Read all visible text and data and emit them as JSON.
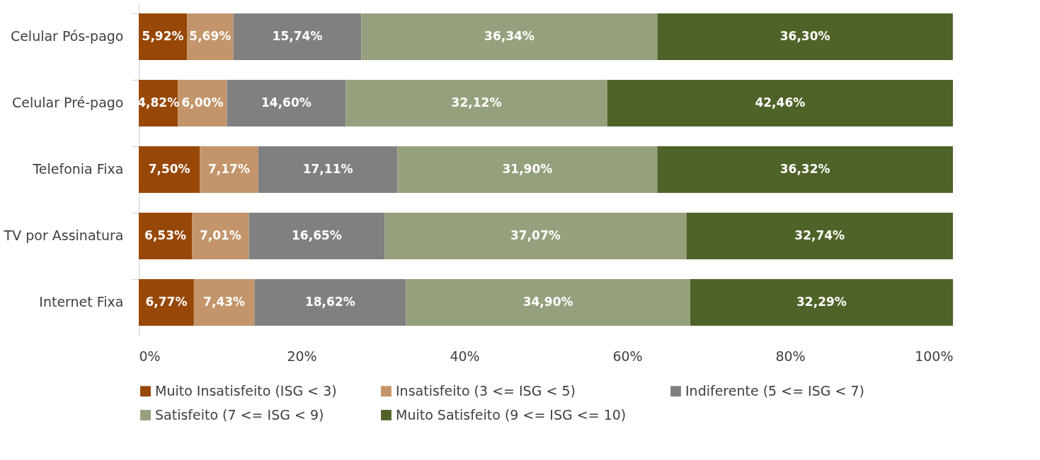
{
  "chart_data": {
    "type": "bar",
    "orientation": "horizontal",
    "stacked": true,
    "categories": [
      "Celular Pós-pago",
      "Celular Pré-pago",
      "Telefonia Fixa",
      "TV por Assinatura",
      "Internet Fixa"
    ],
    "series": [
      {
        "name": "Muito Insatisfeito (ISG < 3)",
        "color": "#974706",
        "values": [
          5.92,
          4.82,
          7.5,
          6.53,
          6.77
        ],
        "value_labels": [
          "5,92%",
          "4,82%",
          "7,50%",
          "6,53%",
          "6,77%"
        ]
      },
      {
        "name": "Insatisfeito (3 <= ISG < 5)",
        "color": "#c4956a",
        "values": [
          5.69,
          6.0,
          7.17,
          7.01,
          7.43
        ],
        "value_labels": [
          "5,69%",
          "6,00%",
          "7,17%",
          "7,01%",
          "7,43%"
        ]
      },
      {
        "name": "Indiferente (5 <= ISG < 7)",
        "color": "#808080",
        "values": [
          15.74,
          14.6,
          17.11,
          16.65,
          18.62
        ],
        "value_labels": [
          "15,74%",
          "14,60%",
          "17,11%",
          "16,65%",
          "18,62%"
        ]
      },
      {
        "name": "Satisfeito (7 <= ISG < 9)",
        "color": "#95a17d",
        "values": [
          36.34,
          32.12,
          31.9,
          37.07,
          34.9
        ],
        "value_labels": [
          "36,34%",
          "32,12%",
          "31,90%",
          "37,07%",
          "34,90%"
        ]
      },
      {
        "name": "Muito Satisfeito (9 <= ISG <= 10)",
        "color": "#4f6228",
        "values": [
          36.3,
          42.46,
          36.32,
          32.74,
          32.29
        ],
        "value_labels": [
          "36,30%",
          "42,46%",
          "36,32%",
          "32,74%",
          "32,29%"
        ]
      }
    ],
    "xlim": [
      0,
      100
    ],
    "xticks": [
      {
        "value": 0,
        "label": "0%"
      },
      {
        "value": 20,
        "label": "20%"
      },
      {
        "value": 40,
        "label": "40%"
      },
      {
        "value": 60,
        "label": "60%"
      },
      {
        "value": 80,
        "label": "80%"
      },
      {
        "value": 100,
        "label": "100%"
      }
    ],
    "grid": false,
    "legend": "bottom"
  }
}
